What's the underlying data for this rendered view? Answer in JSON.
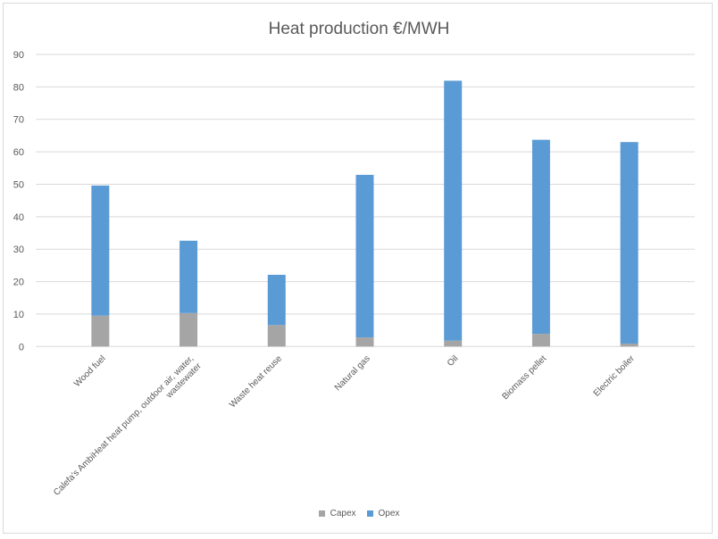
{
  "chart_data": {
    "type": "bar",
    "stacked": true,
    "title": "Heat production €/MWH",
    "xlabel": "",
    "ylabel": "",
    "ylim": [
      0,
      90
    ],
    "yticks": [
      0,
      10,
      20,
      30,
      40,
      50,
      60,
      70,
      80,
      90
    ],
    "grid": true,
    "legend_position": "bottom",
    "categories": [
      "Wood fuel",
      "Calefa's AmbiHeat heat pump, outdoor air, water, wastewater",
      "Waste heat reuse",
      "Natural gas",
      "Oil",
      "Biomass pellet",
      "Electric boiler"
    ],
    "series": [
      {
        "name": "Capex",
        "color": "#a5a5a5",
        "values": [
          9.5,
          10.3,
          6.6,
          2.8,
          1.8,
          3.9,
          0.9
        ]
      },
      {
        "name": "Opex",
        "color": "#5b9bd5",
        "values": [
          40.1,
          22.3,
          15.5,
          50.1,
          80.1,
          59.8,
          62.1
        ]
      }
    ]
  }
}
